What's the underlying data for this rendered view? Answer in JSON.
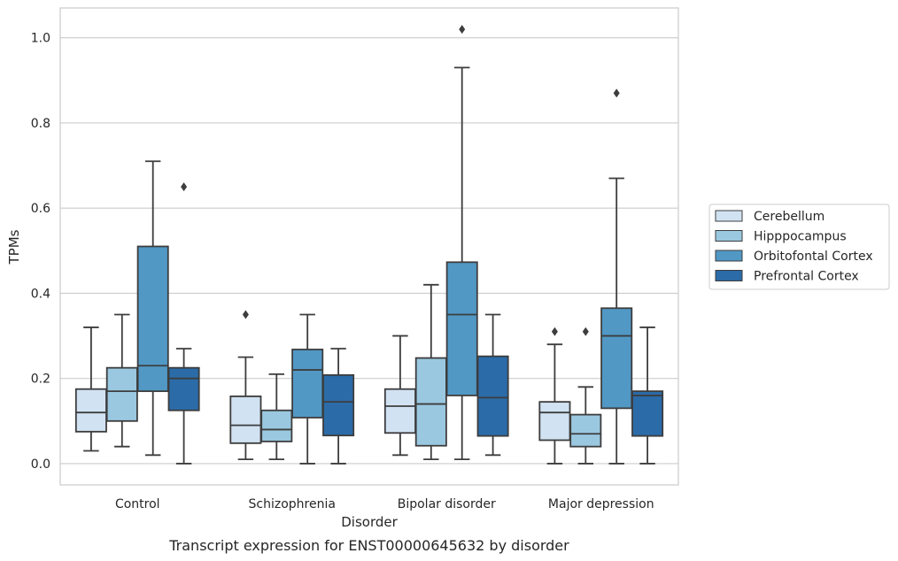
{
  "chart_data": {
    "type": "box",
    "caption": "Transcript expression for ENST00000645632 by disorder",
    "xlabel": "Disorder",
    "ylabel": "TPMs",
    "ylim": [
      -0.05,
      1.07
    ],
    "yticks": [
      "0.0",
      "0.2",
      "0.4",
      "0.6",
      "0.8",
      "1.0"
    ],
    "grid": true,
    "legend_position": "right",
    "categories": [
      "Control",
      "Schizophrenia",
      "Bipolar disorder",
      "Major depression"
    ],
    "series": [
      {
        "name": "Cerebellum",
        "color": "#d1e2f2",
        "boxes": [
          {
            "whislo": 0.03,
            "q1": 0.075,
            "med": 0.12,
            "q3": 0.175,
            "whishi": 0.32,
            "fliers": []
          },
          {
            "whislo": 0.01,
            "q1": 0.048,
            "med": 0.09,
            "q3": 0.158,
            "whishi": 0.25,
            "fliers": [
              0.35
            ]
          },
          {
            "whislo": 0.02,
            "q1": 0.072,
            "med": 0.135,
            "q3": 0.175,
            "whishi": 0.3,
            "fliers": []
          },
          {
            "whislo": 0.0,
            "q1": 0.055,
            "med": 0.12,
            "q3": 0.145,
            "whishi": 0.28,
            "fliers": [
              0.31
            ]
          }
        ]
      },
      {
        "name": "Hipppocampus",
        "color": "#9ac8e0",
        "boxes": [
          {
            "whislo": 0.04,
            "q1": 0.1,
            "med": 0.17,
            "q3": 0.225,
            "whishi": 0.35,
            "fliers": []
          },
          {
            "whislo": 0.01,
            "q1": 0.052,
            "med": 0.08,
            "q3": 0.125,
            "whishi": 0.21,
            "fliers": []
          },
          {
            "whislo": 0.01,
            "q1": 0.042,
            "med": 0.14,
            "q3": 0.248,
            "whishi": 0.42,
            "fliers": []
          },
          {
            "whislo": 0.0,
            "q1": 0.04,
            "med": 0.07,
            "q3": 0.115,
            "whishi": 0.18,
            "fliers": [
              0.31
            ]
          }
        ]
      },
      {
        "name": "Orbitofontal Cortex",
        "color": "#5198c5",
        "boxes": [
          {
            "whislo": 0.02,
            "q1": 0.17,
            "med": 0.23,
            "q3": 0.51,
            "whishi": 0.71,
            "fliers": []
          },
          {
            "whislo": 0.0,
            "q1": 0.108,
            "med": 0.22,
            "q3": 0.268,
            "whishi": 0.35,
            "fliers": []
          },
          {
            "whislo": 0.01,
            "q1": 0.16,
            "med": 0.35,
            "q3": 0.473,
            "whishi": 0.93,
            "fliers": [
              1.02
            ]
          },
          {
            "whislo": 0.0,
            "q1": 0.13,
            "med": 0.3,
            "q3": 0.365,
            "whishi": 0.67,
            "fliers": [
              0.87
            ]
          }
        ]
      },
      {
        "name": "Prefrontal Cortex",
        "color": "#2b6ba8",
        "boxes": [
          {
            "whislo": 0.0,
            "q1": 0.125,
            "med": 0.2,
            "q3": 0.225,
            "whishi": 0.27,
            "fliers": [
              0.65
            ]
          },
          {
            "whislo": 0.0,
            "q1": 0.066,
            "med": 0.145,
            "q3": 0.208,
            "whishi": 0.27,
            "fliers": []
          },
          {
            "whislo": 0.02,
            "q1": 0.065,
            "med": 0.155,
            "q3": 0.252,
            "whishi": 0.35,
            "fliers": []
          },
          {
            "whislo": 0.0,
            "q1": 0.065,
            "med": 0.16,
            "q3": 0.17,
            "whishi": 0.32,
            "fliers": []
          }
        ]
      }
    ]
  }
}
